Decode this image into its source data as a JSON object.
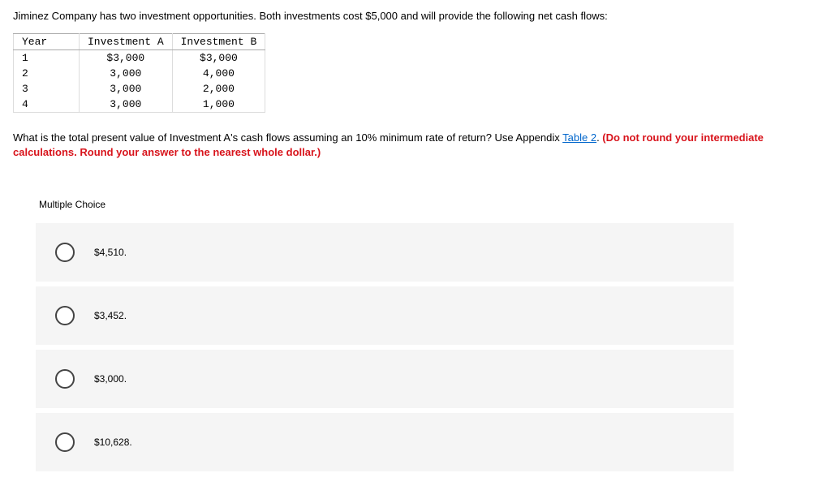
{
  "intro": "Jiminez Company has two investment opportunities. Both investments cost $5,000 and will provide the following net cash flows:",
  "table": {
    "headers": {
      "year": "Year",
      "a": "Investment A",
      "b": "Investment B"
    },
    "rows": [
      {
        "year": "1",
        "a": "$3,000",
        "b": "$3,000"
      },
      {
        "year": "2",
        "a": "3,000",
        "b": "4,000"
      },
      {
        "year": "3",
        "a": "3,000",
        "b": "2,000"
      },
      {
        "year": "4",
        "a": "3,000",
        "b": "1,000"
      }
    ]
  },
  "question": {
    "part1": "What is the total present value of Investment A's cash flows assuming an 10% minimum rate of return? Use Appendix ",
    "link": "Table 2",
    "part2": ". ",
    "red": "(Do not round your intermediate calculations. Round your answer to the nearest whole dollar.)"
  },
  "mcLabel": "Multiple Choice",
  "choices": [
    {
      "label": "$4,510."
    },
    {
      "label": "$3,452."
    },
    {
      "label": "$3,000."
    },
    {
      "label": "$10,628."
    }
  ]
}
